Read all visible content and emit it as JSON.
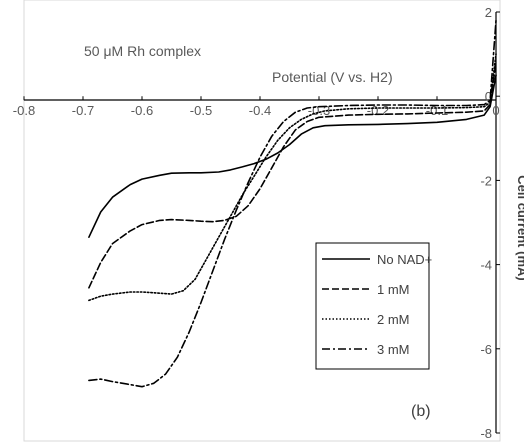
{
  "chart_data": {
    "type": "line",
    "xlabel": "Potential (V vs. H2)",
    "ylabel": "Cell current (mA)",
    "xlim": [
      -0.8,
      0
    ],
    "ylim": [
      -8,
      2
    ],
    "x_ticks": [
      "-0.8",
      "-0.7",
      "-0.6",
      "-0.5",
      "-0.4",
      "-0.3",
      "-0.2",
      "-0.1",
      "0"
    ],
    "y_ticks": [
      "2",
      "0",
      "-2",
      "-4",
      "-6",
      "-8"
    ],
    "grid": false,
    "legend_position": "bottom-right",
    "annotations": [
      "50 μM Rh complex",
      "(b)"
    ],
    "series": [
      {
        "name": "No NAD+",
        "style": "solid",
        "x": [
          -0.69,
          -0.67,
          -0.65,
          -0.62,
          -0.6,
          -0.57,
          -0.55,
          -0.52,
          -0.5,
          -0.47,
          -0.45,
          -0.43,
          -0.41,
          -0.39,
          -0.37,
          -0.35,
          -0.33,
          -0.31,
          -0.29,
          -0.25,
          -0.2,
          -0.15,
          -0.1,
          -0.05,
          -0.02,
          -0.01,
          0
        ],
        "y": [
          -3.35,
          -2.75,
          -2.4,
          -2.1,
          -1.97,
          -1.88,
          -1.83,
          -1.82,
          -1.82,
          -1.8,
          -1.75,
          -1.68,
          -1.6,
          -1.5,
          -1.35,
          -1.15,
          -0.9,
          -0.75,
          -0.7,
          -0.68,
          -0.67,
          -0.65,
          -0.62,
          -0.55,
          -0.45,
          -0.25,
          0.5
        ]
      },
      {
        "name": "1 mM",
        "style": "dashed",
        "x": [
          -0.69,
          -0.67,
          -0.65,
          -0.62,
          -0.6,
          -0.57,
          -0.55,
          -0.52,
          -0.5,
          -0.48,
          -0.46,
          -0.44,
          -0.42,
          -0.4,
          -0.38,
          -0.36,
          -0.34,
          -0.32,
          -0.3,
          -0.25,
          -0.2,
          -0.15,
          -0.1,
          -0.05,
          -0.02,
          -0.01,
          0
        ],
        "y": [
          -4.55,
          -3.95,
          -3.5,
          -3.2,
          -3.05,
          -2.95,
          -2.93,
          -2.95,
          -2.97,
          -2.98,
          -2.95,
          -2.85,
          -2.6,
          -2.2,
          -1.7,
          -1.2,
          -0.8,
          -0.6,
          -0.5,
          -0.45,
          -0.43,
          -0.42,
          -0.4,
          -0.38,
          -0.35,
          -0.2,
          0.8
        ]
      },
      {
        "name": "2 mM",
        "style": "dotted",
        "x": [
          -0.69,
          -0.67,
          -0.65,
          -0.62,
          -0.6,
          -0.57,
          -0.55,
          -0.53,
          -0.51,
          -0.49,
          -0.47,
          -0.45,
          -0.43,
          -0.41,
          -0.39,
          -0.37,
          -0.35,
          -0.33,
          -0.31,
          -0.29,
          -0.25,
          -0.2,
          -0.15,
          -0.1,
          -0.05,
          -0.02,
          -0.01,
          0
        ],
        "y": [
          -4.85,
          -4.75,
          -4.7,
          -4.65,
          -4.65,
          -4.68,
          -4.7,
          -4.62,
          -4.35,
          -3.85,
          -3.35,
          -2.85,
          -2.35,
          -1.9,
          -1.45,
          -1.05,
          -0.75,
          -0.55,
          -0.42,
          -0.35,
          -0.3,
          -0.28,
          -0.28,
          -0.28,
          -0.27,
          -0.25,
          -0.15,
          1.0
        ]
      },
      {
        "name": "3 mM",
        "style": "dash-dot",
        "x": [
          -0.69,
          -0.67,
          -0.65,
          -0.62,
          -0.6,
          -0.58,
          -0.56,
          -0.54,
          -0.52,
          -0.5,
          -0.48,
          -0.46,
          -0.44,
          -0.42,
          -0.4,
          -0.38,
          -0.36,
          -0.34,
          -0.32,
          -0.3,
          -0.25,
          -0.2,
          -0.15,
          -0.1,
          -0.05,
          -0.02,
          -0.01,
          0
        ],
        "y": [
          -6.75,
          -6.72,
          -6.78,
          -6.85,
          -6.9,
          -6.82,
          -6.6,
          -6.2,
          -5.6,
          -4.9,
          -4.15,
          -3.4,
          -2.7,
          -2.05,
          -1.45,
          -0.95,
          -0.6,
          -0.38,
          -0.28,
          -0.25,
          -0.22,
          -0.21,
          -0.21,
          -0.22,
          -0.22,
          -0.2,
          -0.1,
          1.8
        ]
      }
    ]
  }
}
